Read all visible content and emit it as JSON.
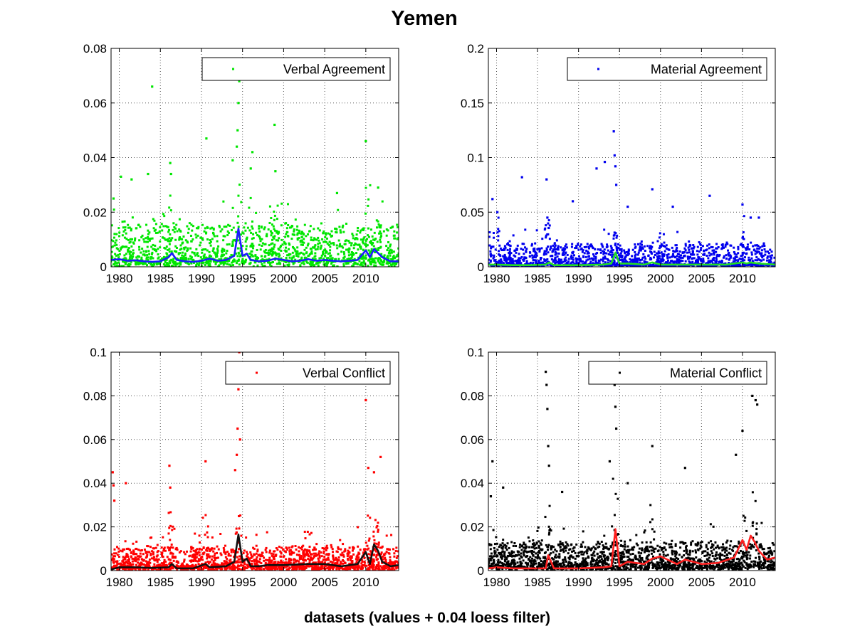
{
  "figure": {
    "title": "Yemen",
    "xlabel": "datasets (values + 0.04 loess filter)"
  },
  "chart_data": [
    {
      "type": "scatter",
      "legend": "Verbal Agreement",
      "legend_position": "top-right",
      "point_color": "#00e600",
      "trend_color": "#1a1aff",
      "grid": true,
      "xlim": [
        1979,
        2014
      ],
      "ylim": [
        0,
        0.08
      ],
      "xticks": [
        1980,
        1985,
        1990,
        1995,
        2000,
        2005,
        2010
      ],
      "yticks": [
        "0",
        "0.02",
        "0.04",
        "0.06",
        "0.08"
      ],
      "yticks_values": [
        0,
        0.02,
        0.04,
        0.06,
        0.08
      ],
      "trend": {
        "x": [
          1979,
          1980,
          1981,
          1982,
          1983,
          1984,
          1985,
          1986,
          1986.4,
          1987,
          1988,
          1989,
          1990,
          1991,
          1992,
          1993,
          1994,
          1994.5,
          1995,
          1995.5,
          1996,
          1997,
          1998,
          1999,
          2000,
          2001,
          2002,
          2003,
          2004,
          2005,
          2006,
          2007,
          2008,
          2009,
          2010,
          2010.5,
          2011,
          2011.5,
          2012,
          2013,
          2014
        ],
        "y": [
          0.0025,
          0.0028,
          0.0022,
          0.0024,
          0.002,
          0.0018,
          0.002,
          0.0035,
          0.005,
          0.0025,
          0.002,
          0.0018,
          0.0022,
          0.003,
          0.0022,
          0.0025,
          0.004,
          0.014,
          0.004,
          0.0048,
          0.0025,
          0.002,
          0.0022,
          0.003,
          0.0025,
          0.002,
          0.0022,
          0.0028,
          0.0022,
          0.0025,
          0.0022,
          0.002,
          0.0022,
          0.0025,
          0.006,
          0.0035,
          0.0065,
          0.005,
          0.0035,
          0.002,
          0.002
        ]
      },
      "spikes": [
        {
          "x": 1979.3,
          "y": 0.025
        },
        {
          "x": 1980.2,
          "y": 0.033
        },
        {
          "x": 1981.5,
          "y": 0.032
        },
        {
          "x": 1983.5,
          "y": 0.034
        },
        {
          "x": 1984.0,
          "y": 0.066
        },
        {
          "x": 1986.2,
          "y": 0.038
        },
        {
          "x": 1986.3,
          "y": 0.034
        },
        {
          "x": 1990.6,
          "y": 0.047
        },
        {
          "x": 1993.8,
          "y": 0.039
        },
        {
          "x": 1994.3,
          "y": 0.044
        },
        {
          "x": 1994.4,
          "y": 0.05
        },
        {
          "x": 1994.5,
          "y": 0.06
        },
        {
          "x": 1994.6,
          "y": 0.068
        },
        {
          "x": 1996.0,
          "y": 0.036
        },
        {
          "x": 1996.2,
          "y": 0.042
        },
        {
          "x": 1998.9,
          "y": 0.052
        },
        {
          "x": 1999.0,
          "y": 0.035
        },
        {
          "x": 2006.5,
          "y": 0.027
        },
        {
          "x": 2010.0,
          "y": 0.046
        },
        {
          "x": 2011.5,
          "y": 0.029
        }
      ],
      "scatter": {
        "seed": 11,
        "count": 1500,
        "base": 0.004,
        "spread": 0.014,
        "max": 0.024,
        "burst_centers": [
          1986.3,
          1994.5,
          1996,
          1999,
          2010.2,
          2011.5
        ],
        "burst_scale": 0.018
      }
    },
    {
      "type": "scatter",
      "legend": "Material Agreement",
      "legend_position": "top-right",
      "point_color": "#0000ee",
      "trend_color": "#22dd22",
      "grid": true,
      "xlim": [
        1979,
        2014
      ],
      "ylim": [
        0,
        0.2
      ],
      "xticks": [
        1980,
        1985,
        1990,
        1995,
        2000,
        2005,
        2010
      ],
      "yticks": [
        "0",
        "0.05",
        "0.1",
        "0.15",
        "0.2"
      ],
      "yticks_values": [
        0,
        0.05,
        0.1,
        0.15,
        0.2
      ],
      "trend": {
        "x": [
          1979,
          1980,
          1982,
          1984,
          1986,
          1986.4,
          1987,
          1990,
          1993,
          1994,
          1994.5,
          1995,
          1996,
          1998,
          1999,
          2000,
          2002,
          2005,
          2008,
          2010,
          2010.5,
          2011,
          2012,
          2014
        ],
        "y": [
          0.002,
          0.002,
          0.0015,
          0.0015,
          0.002,
          0.004,
          0.0015,
          0.0015,
          0.002,
          0.003,
          0.013,
          0.003,
          0.003,
          0.002,
          0.004,
          0.002,
          0.002,
          0.002,
          0.002,
          0.004,
          0.003,
          0.004,
          0.003,
          0.002
        ]
      },
      "spikes": [
        {
          "x": 1979.5,
          "y": 0.062
        },
        {
          "x": 1980.1,
          "y": 0.05
        },
        {
          "x": 1983.1,
          "y": 0.082
        },
        {
          "x": 1986.1,
          "y": 0.08
        },
        {
          "x": 1986.2,
          "y": 0.045
        },
        {
          "x": 1989.3,
          "y": 0.06
        },
        {
          "x": 1992.2,
          "y": 0.09
        },
        {
          "x": 1993.2,
          "y": 0.096
        },
        {
          "x": 1994.3,
          "y": 0.124
        },
        {
          "x": 1994.4,
          "y": 0.102
        },
        {
          "x": 1994.5,
          "y": 0.092
        },
        {
          "x": 1994.6,
          "y": 0.075
        },
        {
          "x": 1996.0,
          "y": 0.055
        },
        {
          "x": 1999.0,
          "y": 0.071
        },
        {
          "x": 2001.5,
          "y": 0.055
        },
        {
          "x": 2006.0,
          "y": 0.065
        },
        {
          "x": 2010.0,
          "y": 0.057
        },
        {
          "x": 2011.0,
          "y": 0.045
        },
        {
          "x": 2012.0,
          "y": 0.045
        }
      ],
      "scatter": {
        "seed": 23,
        "count": 1500,
        "base": 0.003,
        "spread": 0.02,
        "max": 0.035,
        "burst_centers": [
          1980,
          1986.2,
          1994.5,
          2010.2
        ],
        "burst_scale": 0.03
      }
    },
    {
      "type": "scatter",
      "legend": "Verbal Conflict",
      "legend_position": "top-right",
      "point_color": "#ff0000",
      "trend_color": "#111111",
      "grid": true,
      "xlim": [
        1979,
        2014
      ],
      "ylim": [
        0,
        0.1
      ],
      "xticks": [
        1980,
        1985,
        1990,
        1995,
        2000,
        2005,
        2010
      ],
      "yticks": [
        "0",
        "0.02",
        "0.04",
        "0.06",
        "0.08",
        "0.1"
      ],
      "yticks_values": [
        0,
        0.02,
        0.04,
        0.06,
        0.08,
        0.1
      ],
      "trend": {
        "x": [
          1979,
          1980,
          1982,
          1984,
          1986,
          1986.4,
          1987,
          1989,
          1990.5,
          1991,
          1993,
          1994,
          1994.5,
          1995,
          1995.5,
          1996,
          1997,
          1998,
          2000,
          2003,
          2005,
          2007,
          2009,
          2010,
          2010.5,
          2011,
          2011.5,
          2012,
          2013,
          2014
        ],
        "y": [
          0.0005,
          0.0015,
          0.0015,
          0.0012,
          0.0015,
          0.003,
          0.001,
          0.001,
          0.003,
          0.0015,
          0.002,
          0.004,
          0.0165,
          0.004,
          0.0055,
          0.002,
          0.002,
          0.0025,
          0.0025,
          0.003,
          0.003,
          0.002,
          0.003,
          0.0085,
          0.003,
          0.012,
          0.009,
          0.004,
          0.002,
          0.0025
        ]
      },
      "spikes": [
        {
          "x": 1979.2,
          "y": 0.045
        },
        {
          "x": 1979.3,
          "y": 0.039
        },
        {
          "x": 1979.4,
          "y": 0.032
        },
        {
          "x": 1980.8,
          "y": 0.04
        },
        {
          "x": 1986.1,
          "y": 0.048
        },
        {
          "x": 1986.2,
          "y": 0.038
        },
        {
          "x": 1990.5,
          "y": 0.05
        },
        {
          "x": 1994.1,
          "y": 0.046
        },
        {
          "x": 1994.3,
          "y": 0.053
        },
        {
          "x": 1994.4,
          "y": 0.065
        },
        {
          "x": 1994.5,
          "y": 0.083
        },
        {
          "x": 1994.6,
          "y": 0.1
        },
        {
          "x": 1994.7,
          "y": 0.06
        },
        {
          "x": 2010.0,
          "y": 0.078
        },
        {
          "x": 2010.3,
          "y": 0.047
        },
        {
          "x": 2011.0,
          "y": 0.045
        },
        {
          "x": 2011.8,
          "y": 0.052
        }
      ],
      "scatter": {
        "seed": 37,
        "count": 1700,
        "base": 0.003,
        "spread": 0.01,
        "max": 0.02,
        "burst_centers": [
          1986.2,
          1990.5,
          1994.5,
          2010.2,
          2011.3
        ],
        "burst_scale": 0.02
      }
    },
    {
      "type": "scatter",
      "legend": "Material Conflict",
      "legend_position": "top-right",
      "point_color": "#000000",
      "trend_color": "#ff2020",
      "grid": true,
      "xlim": [
        1979,
        2014
      ],
      "ylim": [
        0,
        0.1
      ],
      "xticks": [
        1980,
        1985,
        1990,
        1995,
        2000,
        2005,
        2010
      ],
      "yticks": [
        "0",
        "0.02",
        "0.04",
        "0.06",
        "0.08",
        "0.1"
      ],
      "yticks_values": [
        0,
        0.02,
        0.04,
        0.06,
        0.08,
        0.1
      ],
      "trend": {
        "x": [
          1979,
          1980,
          1982,
          1984,
          1986,
          1986.3,
          1987,
          1990,
          1993,
          1994,
          1994.5,
          1995,
          1996,
          1998,
          1999,
          2000,
          2002,
          2003,
          2005,
          2007,
          2009,
          2010,
          2010.5,
          2011,
          2011.5,
          2012,
          2013,
          2014
        ],
        "y": [
          0.001,
          0.0015,
          0.001,
          0.001,
          0.001,
          0.007,
          0.001,
          0.001,
          0.0015,
          0.002,
          0.019,
          0.002,
          0.004,
          0.003,
          0.0055,
          0.0065,
          0.003,
          0.005,
          0.003,
          0.0035,
          0.006,
          0.014,
          0.0095,
          0.016,
          0.013,
          0.009,
          0.005,
          0.006
        ]
      },
      "spikes": [
        {
          "x": 1979.3,
          "y": 0.034
        },
        {
          "x": 1979.5,
          "y": 0.05
        },
        {
          "x": 1980.8,
          "y": 0.038
        },
        {
          "x": 1986.0,
          "y": 0.091
        },
        {
          "x": 1986.1,
          "y": 0.085
        },
        {
          "x": 1986.2,
          "y": 0.074
        },
        {
          "x": 1986.3,
          "y": 0.057
        },
        {
          "x": 1986.4,
          "y": 0.048
        },
        {
          "x": 1988.0,
          "y": 0.036
        },
        {
          "x": 1993.8,
          "y": 0.05
        },
        {
          "x": 1994.4,
          "y": 0.085
        },
        {
          "x": 1994.5,
          "y": 0.075
        },
        {
          "x": 1994.6,
          "y": 0.065
        },
        {
          "x": 1996.0,
          "y": 0.04
        },
        {
          "x": 1999.0,
          "y": 0.057
        },
        {
          "x": 2003.0,
          "y": 0.047
        },
        {
          "x": 2009.2,
          "y": 0.053
        },
        {
          "x": 2010.0,
          "y": 0.064
        },
        {
          "x": 2011.2,
          "y": 0.08
        },
        {
          "x": 2011.6,
          "y": 0.078
        },
        {
          "x": 2011.8,
          "y": 0.076
        }
      ],
      "scatter": {
        "seed": 53,
        "count": 1800,
        "base": 0.004,
        "spread": 0.012,
        "max": 0.022,
        "burst_centers": [
          1986.2,
          1994.5,
          1999,
          2010.2,
          2011.5
        ],
        "burst_scale": 0.025
      }
    }
  ]
}
